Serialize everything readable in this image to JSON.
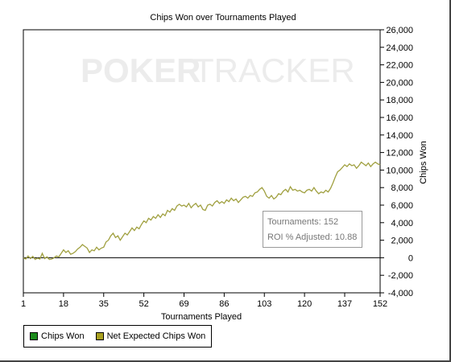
{
  "watermark": {
    "part1": "POKER",
    "part2": "TRACKER"
  },
  "legend": [
    {
      "label": "Chips Won",
      "color": "#1a8a1a"
    },
    {
      "label": "Net Expected Chips Won",
      "color": "#a8a020"
    }
  ],
  "tooltip": {
    "line1_label": "Tournaments:",
    "line1_value": "152",
    "line2_label": "ROI % Adjusted:",
    "line2_value": "10.88"
  },
  "colors": {
    "series": "#a0a040",
    "axis": "#000000",
    "tick_text": "#000000"
  },
  "chart_data": {
    "type": "line",
    "title": "Chips Won over Tournaments Played",
    "xlabel": "Tournaments Played",
    "ylabel": "Chips Won",
    "xlim": [
      1,
      152
    ],
    "ylim": [
      -4000,
      26000
    ],
    "grid": false,
    "x_ticks": [
      1,
      18,
      35,
      52,
      69,
      86,
      103,
      120,
      137,
      152
    ],
    "y_ticks": [
      -4000,
      -2000,
      0,
      2000,
      4000,
      6000,
      8000,
      10000,
      12000,
      14000,
      16000,
      18000,
      20000,
      22000,
      24000,
      26000
    ],
    "y_tick_labels": [
      "-4,000",
      "-2,000",
      "0",
      "2,000",
      "4,000",
      "6,000",
      "8,000",
      "10,000",
      "12,000",
      "14,000",
      "16,000",
      "18,000",
      "20,000",
      "22,000",
      "24,000",
      "26,000"
    ],
    "legend_position": "bottom-left",
    "series": [
      {
        "name": "Chips Won",
        "values": []
      },
      {
        "name": "Net Expected Chips Won",
        "points": [
          [
            1,
            0
          ],
          [
            2,
            -150
          ],
          [
            3,
            200
          ],
          [
            4,
            -100
          ],
          [
            5,
            150
          ],
          [
            6,
            -200
          ],
          [
            7,
            -50
          ],
          [
            8,
            -150
          ],
          [
            9,
            500
          ],
          [
            10,
            -100
          ],
          [
            11,
            100
          ],
          [
            12,
            -200
          ],
          [
            13,
            -150
          ],
          [
            14,
            0
          ],
          [
            15,
            200
          ],
          [
            16,
            100
          ],
          [
            17,
            500
          ],
          [
            18,
            900
          ],
          [
            19,
            600
          ],
          [
            20,
            800
          ],
          [
            21,
            400
          ],
          [
            22,
            500
          ],
          [
            23,
            700
          ],
          [
            24,
            1000
          ],
          [
            25,
            1200
          ],
          [
            26,
            1500
          ],
          [
            27,
            1300
          ],
          [
            28,
            1100
          ],
          [
            29,
            600
          ],
          [
            30,
            900
          ],
          [
            31,
            800
          ],
          [
            32,
            1200
          ],
          [
            33,
            900
          ],
          [
            34,
            1100
          ],
          [
            35,
            1200
          ],
          [
            36,
            1800
          ],
          [
            37,
            2000
          ],
          [
            38,
            2500
          ],
          [
            39,
            2800
          ],
          [
            40,
            2300
          ],
          [
            41,
            2500
          ],
          [
            42,
            2000
          ],
          [
            43,
            2400
          ],
          [
            44,
            2800
          ],
          [
            45,
            2600
          ],
          [
            46,
            3000
          ],
          [
            47,
            3400
          ],
          [
            48,
            3100
          ],
          [
            49,
            3500
          ],
          [
            50,
            3300
          ],
          [
            51,
            3800
          ],
          [
            52,
            4200
          ],
          [
            53,
            4000
          ],
          [
            54,
            4500
          ],
          [
            55,
            4300
          ],
          [
            56,
            4700
          ],
          [
            57,
            4500
          ],
          [
            58,
            4900
          ],
          [
            59,
            4600
          ],
          [
            60,
            5000
          ],
          [
            61,
            4800
          ],
          [
            62,
            5400
          ],
          [
            63,
            5200
          ],
          [
            64,
            5600
          ],
          [
            65,
            5400
          ],
          [
            66,
            5900
          ],
          [
            67,
            6100
          ],
          [
            68,
            5900
          ],
          [
            69,
            6000
          ],
          [
            70,
            5800
          ],
          [
            71,
            6200
          ],
          [
            72,
            5700
          ],
          [
            73,
            6000
          ],
          [
            74,
            6200
          ],
          [
            75,
            5800
          ],
          [
            76,
            6000
          ],
          [
            77,
            5500
          ],
          [
            78,
            5400
          ],
          [
            79,
            6000
          ],
          [
            80,
            6100
          ],
          [
            81,
            5900
          ],
          [
            82,
            6300
          ],
          [
            83,
            6500
          ],
          [
            84,
            6200
          ],
          [
            85,
            6400
          ],
          [
            86,
            6200
          ],
          [
            87,
            6600
          ],
          [
            88,
            6400
          ],
          [
            89,
            6800
          ],
          [
            90,
            6500
          ],
          [
            91,
            6700
          ],
          [
            92,
            6300
          ],
          [
            93,
            6600
          ],
          [
            94,
            6900
          ],
          [
            95,
            7000
          ],
          [
            96,
            6800
          ],
          [
            97,
            7100
          ],
          [
            98,
            7000
          ],
          [
            99,
            7400
          ],
          [
            100,
            7500
          ],
          [
            101,
            7800
          ],
          [
            102,
            8000
          ],
          [
            103,
            7600
          ],
          [
            104,
            7000
          ],
          [
            105,
            6800
          ],
          [
            106,
            7100
          ],
          [
            107,
            6700
          ],
          [
            108,
            6900
          ],
          [
            109,
            7300
          ],
          [
            110,
            7200
          ],
          [
            111,
            7600
          ],
          [
            112,
            7800
          ],
          [
            113,
            7500
          ],
          [
            114,
            8100
          ],
          [
            115,
            7700
          ],
          [
            116,
            7800
          ],
          [
            117,
            7600
          ],
          [
            118,
            7700
          ],
          [
            119,
            7500
          ],
          [
            120,
            7400
          ],
          [
            121,
            7700
          ],
          [
            122,
            7800
          ],
          [
            123,
            7600
          ],
          [
            124,
            8000
          ],
          [
            125,
            7600
          ],
          [
            126,
            7300
          ],
          [
            127,
            7500
          ],
          [
            128,
            7400
          ],
          [
            129,
            7700
          ],
          [
            130,
            7500
          ],
          [
            131,
            7900
          ],
          [
            132,
            8500
          ],
          [
            133,
            9200
          ],
          [
            134,
            9800
          ],
          [
            135,
            10000
          ],
          [
            136,
            10300
          ],
          [
            137,
            10600
          ],
          [
            138,
            10400
          ],
          [
            139,
            10700
          ],
          [
            140,
            10500
          ],
          [
            141,
            10600
          ],
          [
            142,
            10200
          ],
          [
            143,
            10500
          ],
          [
            144,
            10900
          ],
          [
            145,
            10700
          ],
          [
            146,
            10500
          ],
          [
            147,
            10800
          ],
          [
            148,
            10400
          ],
          [
            149,
            10700
          ],
          [
            150,
            10900
          ],
          [
            151,
            10700
          ],
          [
            152,
            10600
          ]
        ]
      }
    ]
  }
}
